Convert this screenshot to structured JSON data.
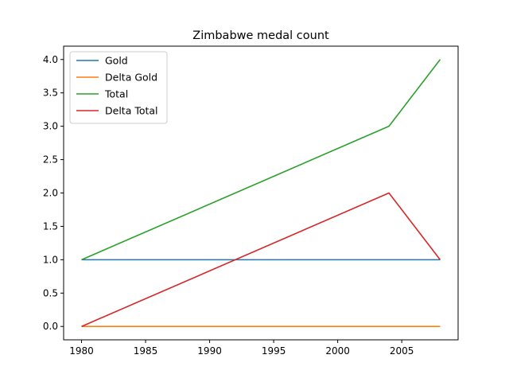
{
  "chart_data": {
    "type": "line",
    "title": "Zimbabwe medal count",
    "xlabel": "",
    "ylabel": "",
    "xlim": [
      1978.6,
      2009.4
    ],
    "ylim": [
      -0.2,
      4.2
    ],
    "xticks": [
      1980,
      1985,
      1990,
      1995,
      2000,
      2005
    ],
    "yticks": [
      0.0,
      0.5,
      1.0,
      1.5,
      2.0,
      2.5,
      3.0,
      3.5,
      4.0
    ],
    "xtick_labels": [
      "1980",
      "1985",
      "1990",
      "1995",
      "2000",
      "2005"
    ],
    "ytick_labels": [
      "0.0",
      "0.5",
      "1.0",
      "1.5",
      "2.0",
      "2.5",
      "3.0",
      "3.5",
      "4.0"
    ],
    "x": [
      1980,
      2004,
      2008
    ],
    "series": [
      {
        "name": "Gold",
        "color": "#1f77b4",
        "values": [
          1,
          1,
          1
        ]
      },
      {
        "name": "Delta Gold",
        "color": "#ff7f0e",
        "values": [
          0,
          0,
          0
        ]
      },
      {
        "name": "Total",
        "color": "#2ca02c",
        "values": [
          1,
          3,
          4
        ]
      },
      {
        "name": "Delta Total",
        "color": "#d62728",
        "values": [
          0,
          2,
          1
        ]
      }
    ],
    "legend_position": "top-left",
    "grid": false
  }
}
